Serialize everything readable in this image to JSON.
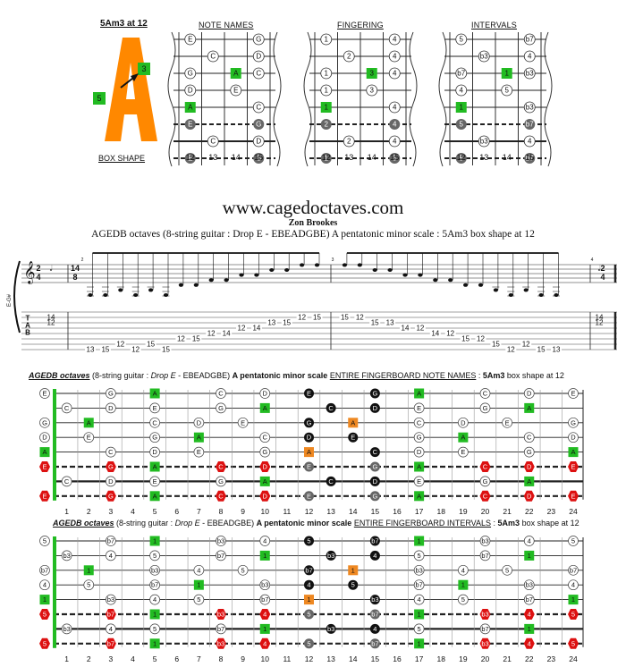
{
  "box": {
    "label": "5Am3 at 12",
    "letter": "A",
    "marker_left": "5",
    "marker_right": "3",
    "caption": "BOX SHAPE",
    "color": "#ff8800"
  },
  "small_diagrams": [
    {
      "title": "NOTE NAMES",
      "rows": [
        [
          "E",
          null,
          null,
          "G"
        ],
        [
          null,
          "C",
          null,
          "D"
        ],
        [
          "G",
          null,
          "A",
          "C"
        ],
        [
          "D",
          null,
          "E",
          null
        ],
        [
          "A",
          null,
          null,
          "C"
        ],
        [
          "E",
          null,
          null,
          "G"
        ],
        [
          null,
          "C",
          null,
          "D"
        ],
        [
          "E",
          null,
          null,
          "G"
        ]
      ]
    },
    {
      "title": "FINGERING",
      "rows": [
        [
          "1",
          null,
          null,
          "4"
        ],
        [
          null,
          "2",
          null,
          "4"
        ],
        [
          "1",
          null,
          "3",
          "4"
        ],
        [
          "1",
          null,
          "3",
          null
        ],
        [
          "1",
          null,
          null,
          "4"
        ],
        [
          "2",
          null,
          null,
          "4"
        ],
        [
          null,
          "2",
          null,
          "4"
        ],
        [
          "1",
          null,
          null,
          "3"
        ]
      ]
    },
    {
      "title": "INTERVALS",
      "rows": [
        [
          "5",
          null,
          null,
          "b7"
        ],
        [
          null,
          "b3",
          null,
          "4"
        ],
        [
          "b7",
          null,
          "1",
          "b3"
        ],
        [
          "4",
          null,
          "5",
          null
        ],
        [
          "1",
          null,
          null,
          "b3"
        ],
        [
          "5",
          null,
          null,
          "b7"
        ],
        [
          null,
          "b3",
          null,
          "4"
        ],
        [
          "5",
          null,
          null,
          "b7"
        ]
      ]
    }
  ],
  "small_frets": [
    "12",
    "13",
    "14",
    "15"
  ],
  "website": "www.cagedoctaves.com",
  "author": "Zon Brookes",
  "description": "AGEDB octaves (8-string guitar : Drop E - EBEADGBE) A pentatonic minor scale : 5Am3 box shape at 12",
  "tab": {
    "clef_label": "E-G#",
    "time_sig": [
      "2",
      "4"
    ],
    "mid_time_sig": [
      "14",
      "8"
    ],
    "measure_nums": [
      "2",
      "3",
      "4"
    ],
    "tab_letters": [
      "T",
      "A",
      "B"
    ],
    "first_chord": [
      {
        "line": 1,
        "fret": "14"
      },
      {
        "line": 2,
        "fret": "12"
      }
    ],
    "last_chord": [
      {
        "line": 1,
        "fret": "14"
      },
      {
        "line": 2,
        "fret": "12"
      }
    ],
    "notes": [
      {
        "line": 7,
        "fret": "13"
      },
      {
        "line": 7,
        "fret": "15"
      },
      {
        "line": 6,
        "fret": "12"
      },
      {
        "line": 7,
        "fret": "12"
      },
      {
        "line": 6,
        "fret": "15"
      },
      {
        "line": 7,
        "fret": "15"
      },
      {
        "line": 5,
        "fret": "12"
      },
      {
        "line": 5,
        "fret": "15"
      },
      {
        "line": 4,
        "fret": "12"
      },
      {
        "line": 4,
        "fret": "14"
      },
      {
        "line": 3,
        "fret": "12"
      },
      {
        "line": 3,
        "fret": "14"
      },
      {
        "line": 2,
        "fret": "13"
      },
      {
        "line": 2,
        "fret": "15"
      },
      {
        "line": 1,
        "fret": "12"
      },
      {
        "line": 1,
        "fret": "15"
      },
      {
        "line": 1,
        "fret": "15"
      },
      {
        "line": 1,
        "fret": "12"
      },
      {
        "line": 2,
        "fret": "15"
      },
      {
        "line": 2,
        "fret": "13"
      },
      {
        "line": 3,
        "fret": "14"
      },
      {
        "line": 3,
        "fret": "12"
      },
      {
        "line": 4,
        "fret": "14"
      },
      {
        "line": 4,
        "fret": "12"
      },
      {
        "line": 5,
        "fret": "15"
      },
      {
        "line": 5,
        "fret": "12"
      },
      {
        "line": 6,
        "fret": "15"
      },
      {
        "line": 7,
        "fret": "12"
      },
      {
        "line": 6,
        "fret": "12"
      },
      {
        "line": 7,
        "fret": "15"
      },
      {
        "line": 7,
        "fret": "13"
      }
    ]
  },
  "board_notes": {
    "header_title": "AGEDB octaves",
    "header_mid": "(8-string guitar : ",
    "header_tuning": "Drop E",
    "header_mid2": " - EBEADGBE) ",
    "header_scale": "A pentatonic minor scale",
    "header_sub": "ENTIRE FINGERBOARD NOTE NAMES",
    "header_tail": " : ",
    "header_shape": "5Am3",
    "header_end": " box shape at 12",
    "strings": [
      [
        [
          "0",
          "E"
        ],
        [
          "3",
          "G"
        ],
        [
          "5",
          "A"
        ],
        [
          "8",
          "C"
        ],
        [
          "10",
          "D"
        ],
        [
          "12",
          "E"
        ],
        [
          "15",
          "G"
        ],
        [
          "17",
          "A"
        ],
        [
          "20",
          "C"
        ],
        [
          "22",
          "D"
        ],
        [
          "24",
          "E"
        ]
      ],
      [
        [
          "1",
          "C"
        ],
        [
          "3",
          "D"
        ],
        [
          "5",
          "E"
        ],
        [
          "8",
          "G"
        ],
        [
          "10",
          "A"
        ],
        [
          "13",
          "C"
        ],
        [
          "15",
          "D"
        ],
        [
          "17",
          "E"
        ],
        [
          "20",
          "G"
        ],
        [
          "22",
          "A"
        ]
      ],
      [
        [
          "0",
          "G"
        ],
        [
          "2",
          "A"
        ],
        [
          "5",
          "C"
        ],
        [
          "7",
          "D"
        ],
        [
          "9",
          "E"
        ],
        [
          "12",
          "G"
        ],
        [
          "14",
          "A"
        ],
        [
          "17",
          "C"
        ],
        [
          "19",
          "D"
        ],
        [
          "21",
          "E"
        ],
        [
          "24",
          "G"
        ]
      ],
      [
        [
          "0",
          "D"
        ],
        [
          "2",
          "E"
        ],
        [
          "5",
          "G"
        ],
        [
          "7",
          "A"
        ],
        [
          "10",
          "C"
        ],
        [
          "12",
          "D"
        ],
        [
          "14",
          "E"
        ],
        [
          "17",
          "G"
        ],
        [
          "19",
          "A"
        ],
        [
          "22",
          "C"
        ],
        [
          "24",
          "D"
        ]
      ],
      [
        [
          "0",
          "A"
        ],
        [
          "3",
          "C"
        ],
        [
          "5",
          "D"
        ],
        [
          "7",
          "E"
        ],
        [
          "10",
          "G"
        ],
        [
          "12",
          "A"
        ],
        [
          "15",
          "C"
        ],
        [
          "17",
          "D"
        ],
        [
          "19",
          "E"
        ],
        [
          "22",
          "G"
        ],
        [
          "24",
          "A"
        ]
      ],
      [
        [
          "0",
          "E"
        ],
        [
          "3",
          "G"
        ],
        [
          "5",
          "A"
        ],
        [
          "8",
          "C"
        ],
        [
          "10",
          "D"
        ],
        [
          "12",
          "E"
        ],
        [
          "15",
          "G"
        ],
        [
          "17",
          "A"
        ],
        [
          "20",
          "C"
        ],
        [
          "22",
          "D"
        ],
        [
          "24",
          "E"
        ]
      ],
      [
        [
          "1",
          "C"
        ],
        [
          "3",
          "D"
        ],
        [
          "5",
          "E"
        ],
        [
          "8",
          "G"
        ],
        [
          "10",
          "A"
        ],
        [
          "13",
          "C"
        ],
        [
          "15",
          "D"
        ],
        [
          "17",
          "E"
        ],
        [
          "20",
          "G"
        ],
        [
          "22",
          "A"
        ]
      ],
      [
        [
          "0",
          "E"
        ],
        [
          "3",
          "G"
        ],
        [
          "5",
          "A"
        ],
        [
          "8",
          "C"
        ],
        [
          "10",
          "D"
        ],
        [
          "12",
          "E"
        ],
        [
          "15",
          "G"
        ],
        [
          "17",
          "A"
        ],
        [
          "20",
          "C"
        ],
        [
          "22",
          "D"
        ],
        [
          "24",
          "E"
        ]
      ]
    ]
  },
  "board_intervals": {
    "header_title": "AGEDB octaves",
    "header_mid": "(8-string guitar : ",
    "header_tuning": "Drop E",
    "header_mid2": " - EBEADGBE) ",
    "header_scale": "A pentatonic minor scale",
    "header_sub": "ENTIRE FINGERBOARD INTERVALS",
    "header_tail": " : ",
    "header_shape": "5Am3",
    "header_end": " box shape at 12",
    "strings": [
      [
        [
          "0",
          "5"
        ],
        [
          "3",
          "b7"
        ],
        [
          "5",
          "1"
        ],
        [
          "8",
          "b3"
        ],
        [
          "10",
          "4"
        ],
        [
          "12",
          "5"
        ],
        [
          "15",
          "b7"
        ],
        [
          "17",
          "1"
        ],
        [
          "20",
          "b3"
        ],
        [
          "22",
          "4"
        ],
        [
          "24",
          "5"
        ]
      ],
      [
        [
          "1",
          "b3"
        ],
        [
          "3",
          "4"
        ],
        [
          "5",
          "5"
        ],
        [
          "8",
          "b7"
        ],
        [
          "10",
          "1"
        ],
        [
          "13",
          "b3"
        ],
        [
          "15",
          "4"
        ],
        [
          "17",
          "5"
        ],
        [
          "20",
          "b7"
        ],
        [
          "22",
          "1"
        ]
      ],
      [
        [
          "0",
          "b7"
        ],
        [
          "2",
          "1"
        ],
        [
          "5",
          "b3"
        ],
        [
          "7",
          "4"
        ],
        [
          "9",
          "5"
        ],
        [
          "12",
          "b7"
        ],
        [
          "14",
          "1"
        ],
        [
          "17",
          "b3"
        ],
        [
          "19",
          "4"
        ],
        [
          "21",
          "5"
        ],
        [
          "24",
          "b7"
        ]
      ],
      [
        [
          "0",
          "4"
        ],
        [
          "2",
          "5"
        ],
        [
          "5",
          "b7"
        ],
        [
          "7",
          "1"
        ],
        [
          "10",
          "b3"
        ],
        [
          "12",
          "4"
        ],
        [
          "14",
          "5"
        ],
        [
          "17",
          "b7"
        ],
        [
          "19",
          "1"
        ],
        [
          "22",
          "b3"
        ],
        [
          "24",
          "4"
        ]
      ],
      [
        [
          "0",
          "1"
        ],
        [
          "3",
          "b3"
        ],
        [
          "5",
          "4"
        ],
        [
          "7",
          "5"
        ],
        [
          "10",
          "b7"
        ],
        [
          "12",
          "1"
        ],
        [
          "15",
          "b3"
        ],
        [
          "17",
          "4"
        ],
        [
          "19",
          "5"
        ],
        [
          "22",
          "b7"
        ],
        [
          "24",
          "1"
        ]
      ],
      [
        [
          "0",
          "5"
        ],
        [
          "3",
          "b7"
        ],
        [
          "5",
          "1"
        ],
        [
          "8",
          "b3"
        ],
        [
          "10",
          "4"
        ],
        [
          "12",
          "5"
        ],
        [
          "15",
          "b7"
        ],
        [
          "17",
          "1"
        ],
        [
          "20",
          "b3"
        ],
        [
          "22",
          "4"
        ],
        [
          "24",
          "5"
        ]
      ],
      [
        [
          "1",
          "b3"
        ],
        [
          "3",
          "4"
        ],
        [
          "5",
          "5"
        ],
        [
          "8",
          "b7"
        ],
        [
          "10",
          "1"
        ],
        [
          "13",
          "b3"
        ],
        [
          "15",
          "4"
        ],
        [
          "17",
          "5"
        ],
        [
          "20",
          "b7"
        ],
        [
          "22",
          "1"
        ]
      ],
      [
        [
          "0",
          "5"
        ],
        [
          "3",
          "b7"
        ],
        [
          "5",
          "1"
        ],
        [
          "8",
          "b3"
        ],
        [
          "10",
          "4"
        ],
        [
          "12",
          "5"
        ],
        [
          "15",
          "b7"
        ],
        [
          "17",
          "1"
        ],
        [
          "20",
          "b3"
        ],
        [
          "22",
          "4"
        ],
        [
          "24",
          "5"
        ]
      ]
    ]
  },
  "fret_numbers": [
    "1",
    "2",
    "3",
    "4",
    "5",
    "6",
    "7",
    "8",
    "9",
    "10",
    "11",
    "12",
    "13",
    "14",
    "15",
    "16",
    "17",
    "18",
    "19",
    "20",
    "21",
    "22",
    "23",
    "24"
  ],
  "colors": {
    "root": "#22bb22",
    "root_box": "#ee8822",
    "bass_red": "#dd1111",
    "box_fill": "#111111",
    "bass_box": "#666666",
    "nut": "#22bb22"
  }
}
